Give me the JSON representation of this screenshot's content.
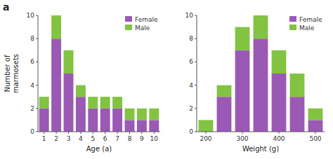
{
  "chart_data": [
    {
      "type": "bar",
      "title": "a",
      "categories": [
        1,
        2,
        3,
        4,
        5,
        6,
        7,
        8,
        9,
        10
      ],
      "series": [
        {
          "name": "Female",
          "color": "#9B59B6",
          "values": [
            2,
            8,
            5,
            3,
            2,
            2,
            2,
            1,
            1,
            1
          ]
        },
        {
          "name": "Male",
          "color": "#82C341",
          "values": [
            1,
            2,
            2,
            1,
            1,
            1,
            1,
            1,
            1,
            1
          ]
        }
      ],
      "stacked": true,
      "xlabel": "Age (a)",
      "ylabel": "Number of\nmarmosets",
      "ylim": [
        0,
        10
      ],
      "yticks": [
        0,
        2,
        4,
        6,
        8,
        10
      ],
      "legend": "upper right"
    },
    {
      "type": "bar",
      "x": [
        200,
        250,
        300,
        350,
        400,
        450,
        500
      ],
      "series": [
        {
          "name": "Female",
          "color": "#9B59B6",
          "values": [
            0,
            3,
            7,
            8,
            5,
            3,
            1
          ]
        },
        {
          "name": "Male",
          "color": "#82C341",
          "values": [
            1,
            1,
            2,
            2,
            2,
            2,
            1
          ]
        }
      ],
      "stacked": true,
      "xlabel": "Weight (g)",
      "xlim": [
        175,
        525
      ],
      "xticks": [
        200,
        300,
        400,
        500
      ],
      "ylim": [
        0,
        10
      ],
      "yticks": [
        0,
        2,
        4,
        6,
        8,
        10
      ],
      "legend": "upper right"
    }
  ]
}
